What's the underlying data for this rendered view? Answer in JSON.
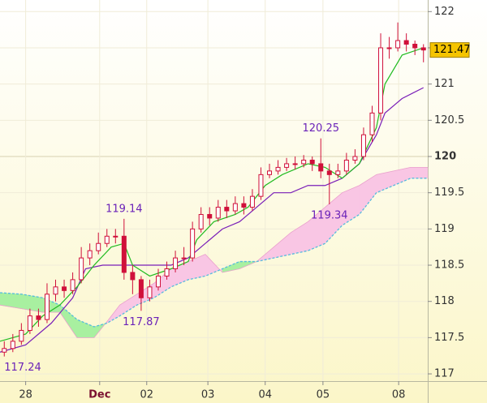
{
  "chart_data": {
    "type": "candlestick",
    "x": [
      1,
      3,
      5,
      7,
      9,
      11,
      13,
      15,
      17,
      19,
      21,
      23,
      25,
      27,
      29,
      31,
      33,
      35,
      37,
      39,
      41,
      43,
      45,
      47,
      49,
      51,
      53,
      55,
      57,
      59,
      61,
      63,
      65,
      67,
      69,
      71,
      73,
      75,
      77,
      79,
      81,
      83,
      85,
      87,
      89,
      91,
      93,
      95,
      97,
      99
    ],
    "open": [
      117.3,
      117.35,
      117.45,
      117.6,
      117.8,
      117.75,
      118.1,
      118.2,
      118.15,
      118.3,
      118.6,
      118.7,
      118.8,
      118.9,
      118.9,
      118.4,
      118.3,
      118.05,
      118.2,
      118.35,
      118.45,
      118.6,
      118.6,
      119.0,
      119.2,
      119.15,
      119.3,
      119.25,
      119.35,
      119.3,
      119.45,
      119.75,
      119.8,
      119.85,
      119.9,
      119.9,
      119.95,
      119.9,
      119.8,
      119.75,
      119.8,
      119.95,
      120.0,
      120.3,
      120.6,
      121.5,
      121.5,
      121.6,
      121.55,
      121.5
    ],
    "high": [
      117.45,
      117.55,
      117.7,
      117.9,
      117.9,
      118.25,
      118.3,
      118.3,
      118.4,
      118.75,
      118.8,
      118.95,
      119.0,
      119.0,
      119.14,
      118.5,
      118.35,
      118.3,
      118.45,
      118.55,
      118.7,
      118.75,
      119.1,
      119.3,
      119.3,
      119.4,
      119.4,
      119.45,
      119.45,
      119.55,
      119.85,
      119.9,
      119.95,
      119.98,
      120.0,
      120.02,
      120.0,
      120.25,
      119.9,
      119.9,
      120.05,
      120.1,
      120.4,
      120.7,
      121.7,
      121.65,
      121.85,
      121.7,
      121.6,
      121.55
    ],
    "low": [
      117.24,
      117.3,
      117.4,
      117.55,
      117.65,
      117.7,
      118.0,
      118.05,
      118.1,
      118.25,
      118.5,
      118.65,
      118.75,
      118.8,
      118.3,
      118.1,
      117.87,
      118.0,
      118.15,
      118.3,
      118.4,
      118.5,
      118.55,
      118.95,
      119.05,
      119.1,
      119.15,
      119.2,
      119.2,
      119.25,
      119.4,
      119.7,
      119.75,
      119.8,
      119.82,
      119.85,
      119.8,
      119.7,
      119.34,
      119.7,
      119.75,
      119.9,
      119.95,
      120.2,
      120.5,
      121.35,
      121.45,
      121.45,
      121.4,
      121.3
    ],
    "close": [
      117.35,
      117.45,
      117.6,
      117.8,
      117.75,
      118.1,
      118.2,
      118.15,
      118.3,
      118.6,
      118.7,
      118.8,
      118.9,
      118.9,
      118.4,
      118.3,
      118.05,
      118.2,
      118.35,
      118.45,
      118.6,
      118.6,
      119.0,
      119.2,
      119.15,
      119.3,
      119.25,
      119.35,
      119.3,
      119.45,
      119.75,
      119.8,
      119.85,
      119.9,
      119.9,
      119.95,
      119.9,
      119.8,
      119.75,
      119.8,
      119.95,
      120.0,
      120.3,
      120.6,
      121.5,
      121.5,
      121.6,
      121.55,
      121.5,
      121.47
    ],
    "up_color": "#ffffff",
    "down_color": "#d0103a",
    "wick_color": "#d0103a",
    "tenkan": {
      "color": "#22bb22",
      "x": [
        0,
        6,
        10,
        14,
        18,
        22,
        26,
        29,
        31,
        35,
        40,
        44,
        46,
        50,
        55,
        58,
        62,
        66,
        72,
        76,
        80,
        84,
        88,
        90,
        94,
        99
      ],
      "values": [
        117.45,
        117.55,
        117.8,
        117.95,
        118.2,
        118.5,
        118.75,
        118.8,
        118.5,
        118.35,
        118.45,
        118.55,
        118.85,
        119.1,
        119.2,
        119.3,
        119.6,
        119.75,
        119.9,
        119.85,
        119.7,
        119.9,
        120.4,
        121.0,
        121.4,
        121.5
      ]
    },
    "kijun": {
      "color": "#7a1fb8",
      "x": [
        0,
        6,
        12,
        17,
        20,
        24,
        30,
        34,
        40,
        44,
        48,
        52,
        56,
        60,
        64,
        68,
        72,
        76,
        80,
        84,
        88,
        90,
        94,
        99
      ],
      "values": [
        117.3,
        117.4,
        117.7,
        118.05,
        118.45,
        118.5,
        118.5,
        118.5,
        118.5,
        118.6,
        118.8,
        119.0,
        119.1,
        119.3,
        119.5,
        119.5,
        119.6,
        119.6,
        119.7,
        119.9,
        120.3,
        120.6,
        120.8,
        120.95
      ]
    },
    "cloud": {
      "x": [
        0,
        5,
        10,
        14,
        18,
        22,
        25,
        28,
        32,
        36,
        40,
        44,
        48,
        52,
        56,
        60,
        64,
        68,
        72,
        76,
        80,
        84,
        88,
        92,
        96,
        100
      ],
      "span_a": [
        117.95,
        117.9,
        117.85,
        117.85,
        117.5,
        117.5,
        117.72,
        117.95,
        118.1,
        118.25,
        118.45,
        118.55,
        118.65,
        118.4,
        118.45,
        118.55,
        118.75,
        118.95,
        119.1,
        119.3,
        119.5,
        119.6,
        119.75,
        119.8,
        119.85,
        119.85
      ],
      "span_b": [
        118.12,
        118.1,
        118.05,
        117.95,
        117.75,
        117.65,
        117.7,
        117.8,
        117.95,
        118.05,
        118.2,
        118.3,
        118.35,
        118.45,
        118.55,
        118.55,
        118.6,
        118.65,
        118.7,
        118.8,
        119.05,
        119.2,
        119.5,
        119.6,
        119.7,
        119.7
      ],
      "up_color": "#f9c6e4",
      "down_color": "#a8f0a0",
      "span_b_color": "#55bbdd"
    },
    "annotations": [
      {
        "x": 1,
        "value": 117.24,
        "label": "117.24",
        "position": "below"
      },
      {
        "x": 29,
        "value": 119.14,
        "label": "119.14",
        "position": "above"
      },
      {
        "x": 33,
        "value": 117.87,
        "label": "117.87",
        "position": "below"
      },
      {
        "x": 75,
        "value": 120.25,
        "label": "120.25",
        "position": "above"
      },
      {
        "x": 77,
        "value": 119.34,
        "label": "119.34",
        "position": "below"
      }
    ],
    "last_price": 121.47,
    "highlight_level": 120,
    "xlim": [
      0,
      100
    ],
    "xticks": [
      {
        "value": 6,
        "label": "28"
      },
      {
        "value": 23.3,
        "label": "Dec"
      },
      {
        "value": 34.3,
        "label": "02"
      },
      {
        "value": 48.6,
        "label": "03"
      },
      {
        "value": 62,
        "label": "04"
      },
      {
        "value": 75.5,
        "label": "05"
      },
      {
        "value": 93.2,
        "label": "08"
      }
    ],
    "ylim": [
      116.9,
      122.16
    ],
    "yticks": [
      117,
      117.5,
      118,
      118.5,
      119,
      119.5,
      120,
      120.5,
      121,
      121.5,
      122
    ],
    "grid": true
  }
}
